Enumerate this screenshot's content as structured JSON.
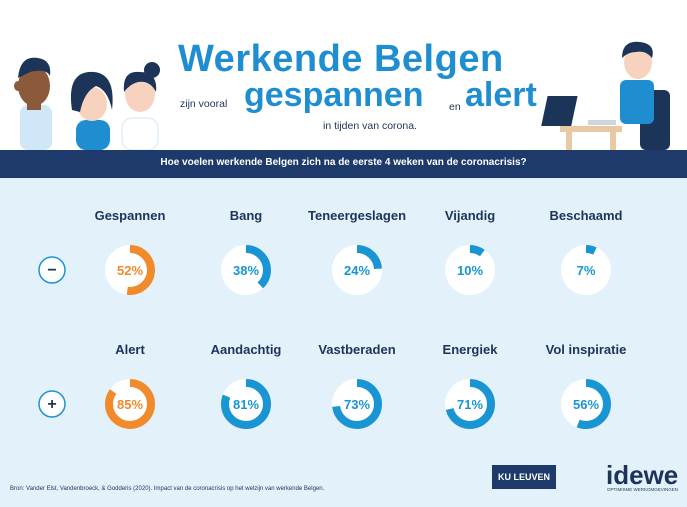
{
  "header": {
    "title_line1": "Werkende Belgen",
    "prefix_small": "zijn vooral",
    "word_big1": "gespannen",
    "connector_small": "en",
    "word_big2": "alert",
    "suffix_small": "in tijden van corona."
  },
  "band": {
    "question": "Hoe voelen werkende Belgen zich na de eerste 4 weken van de coronacrisis?"
  },
  "colors": {
    "accent_orange": "#f08a2a",
    "accent_blue": "#1a95d3",
    "track": "#ffffff",
    "label": "#1c3458"
  },
  "chart_data": {
    "type": "donut",
    "rows": [
      {
        "sign": "−",
        "items": [
          {
            "label": "Gespannen",
            "value": 52,
            "display": "52%",
            "highlight": true
          },
          {
            "label": "Bang",
            "value": 38,
            "display": "38%",
            "highlight": false
          },
          {
            "label": "Teneergeslagen",
            "value": 24,
            "display": "24%",
            "highlight": false
          },
          {
            "label": "Vijandig",
            "value": 10,
            "display": "10%",
            "highlight": false
          },
          {
            "label": "Beschaamd",
            "value": 7,
            "display": "7%",
            "highlight": false
          }
        ]
      },
      {
        "sign": "+",
        "items": [
          {
            "label": "Alert",
            "value": 85,
            "display": "85%",
            "highlight": true
          },
          {
            "label": "Aandachtig",
            "value": 81,
            "display": "81%",
            "highlight": false
          },
          {
            "label": "Vastberaden",
            "value": 73,
            "display": "73%",
            "highlight": false
          },
          {
            "label": "Energiek",
            "value": 71,
            "display": "71%",
            "highlight": false
          },
          {
            "label": "Vol inspiratie",
            "value": 56,
            "display": "56%",
            "highlight": false
          }
        ]
      }
    ]
  },
  "footer": {
    "source": "Bron: Vander Elst, Vandenbroeck, & Godderis (2020). Impact van de coronacrisis op het welzijn van werkende Belgen.",
    "logo_ku": "KU LEUVEN",
    "logo_idewe": "idewe",
    "logo_idewe_sub": "OPTIMISME WERKOMGEVINGEN"
  }
}
